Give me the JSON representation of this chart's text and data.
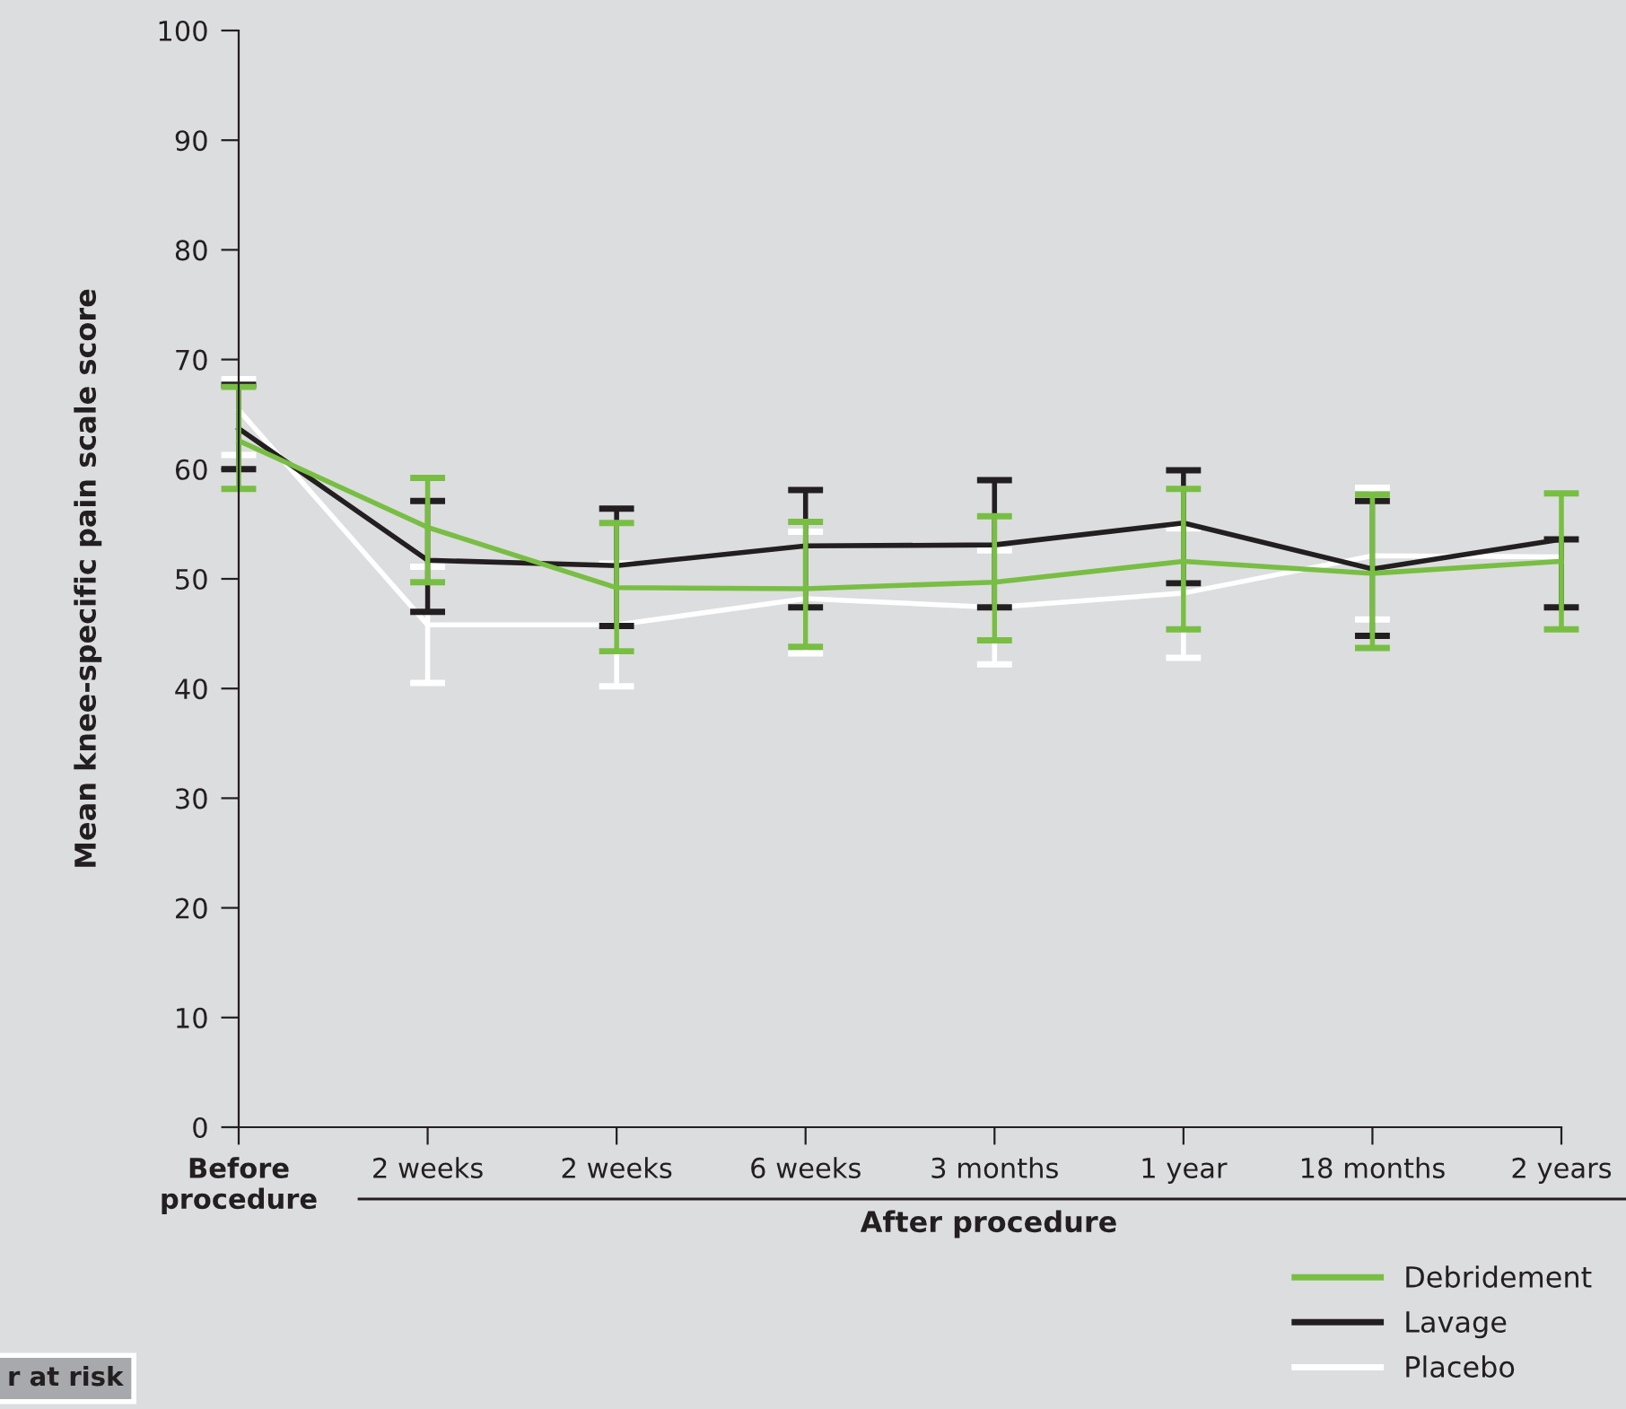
{
  "chart_data": {
    "type": "line",
    "ylabel": "Mean knee-specific pain scale score",
    "categories": [
      "Before\nprocedure",
      "2 weeks",
      "2 weeks",
      "6 weeks",
      "3 months",
      "1 year",
      "18 months",
      "2 years"
    ],
    "ylim": [
      0,
      100
    ],
    "yticks": [
      0,
      10,
      20,
      30,
      40,
      50,
      60,
      70,
      80,
      90,
      100
    ],
    "series": [
      {
        "name": "Placebo",
        "color": "#ffffff",
        "values": [
          65.4,
          45.8,
          45.8,
          48.2,
          47.4,
          48.7,
          52.1,
          52.0
        ],
        "errors": [
          [
            61.3,
            68.2
          ],
          [
            40.5,
            51.1
          ],
          [
            40.2,
            51.4
          ],
          [
            43.2,
            54.3
          ],
          [
            42.2,
            52.6
          ],
          [
            42.8,
            54.6
          ],
          [
            46.3,
            58.3
          ],
          null
        ]
      },
      {
        "name": "Lavage",
        "color": "#231f20",
        "values": [
          63.7,
          51.7,
          51.2,
          53.0,
          53.1,
          55.1,
          50.9,
          53.6
        ],
        "errors": [
          [
            60.0,
            67.7
          ],
          [
            47.0,
            57.1
          ],
          [
            45.7,
            56.4
          ],
          [
            47.4,
            58.1
          ],
          [
            47.4,
            59.0
          ],
          [
            49.6,
            59.9
          ],
          [
            44.8,
            57.1
          ],
          [
            47.4,
            53.6
          ]
        ]
      },
      {
        "name": "Debridement",
        "color": "#78be43",
        "values": [
          62.6,
          54.7,
          49.2,
          49.1,
          49.7,
          51.6,
          50.5,
          51.6
        ],
        "errors": [
          [
            58.2,
            67.5
          ],
          [
            49.7,
            59.2
          ],
          [
            43.4,
            55.1
          ],
          [
            43.8,
            55.2
          ],
          [
            44.4,
            55.7
          ],
          [
            45.4,
            58.2
          ],
          [
            43.7,
            57.7
          ],
          [
            45.4,
            57.8
          ]
        ]
      }
    ],
    "legend": "bottom right",
    "grid": false,
    "marker": "none",
    "line_style": "solid",
    "annotations": [
      "After procedure",
      "r at risk"
    ]
  }
}
